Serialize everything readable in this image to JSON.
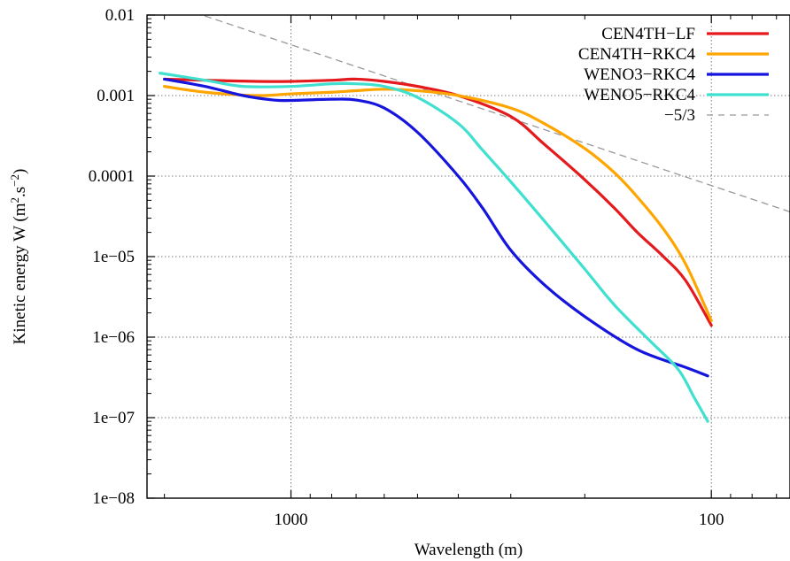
{
  "chart_data": {
    "type": "line",
    "xlabel": "Wavelength (m)",
    "ylabel": "Kinetic energy W (m",
    "ylabel_sup1": "2",
    "ylabel_mid": ".s",
    "ylabel_sup2": "−2",
    "ylabel_end": ")",
    "x_scale": "log",
    "x_reversed": true,
    "xlim": [
      2200,
      65
    ],
    "y_scale": "log",
    "ylim": [
      1e-08,
      0.01
    ],
    "grid": true,
    "legend_position": "top-right",
    "xticks": [
      {
        "value": 1000,
        "label": "1000"
      },
      {
        "value": 100,
        "label": "100"
      }
    ],
    "yticks": [
      {
        "value": 0.01,
        "label": "0.01"
      },
      {
        "value": 0.001,
        "label": "0.001"
      },
      {
        "value": 0.0001,
        "label": "0.0001"
      },
      {
        "value": 1e-05,
        "label": "1e−05"
      },
      {
        "value": 1e-06,
        "label": "1e−06"
      },
      {
        "value": 1e-07,
        "label": "1e−07"
      },
      {
        "value": 1e-08,
        "label": "1e−08"
      }
    ],
    "series": [
      {
        "name": "CEN4TH−LF",
        "color": "#e41a1c",
        "dash": "solid",
        "points": [
          [
            2000,
            0.0016
          ],
          [
            1600,
            0.00155
          ],
          [
            1200,
            0.0015
          ],
          [
            1000,
            0.0015
          ],
          [
            800,
            0.00155
          ],
          [
            700,
            0.0016
          ],
          [
            600,
            0.0015
          ],
          [
            500,
            0.0013
          ],
          [
            400,
            0.001
          ],
          [
            300,
            0.00055
          ],
          [
            250,
            0.00025
          ],
          [
            200,
            9e-05
          ],
          [
            170,
            4e-05
          ],
          [
            150,
            2e-05
          ],
          [
            130,
            1e-05
          ],
          [
            115,
            5e-06
          ],
          [
            100,
            1.4e-06
          ]
        ]
      },
      {
        "name": "CEN4TH−RKC4",
        "color": "#ffa500",
        "dash": "solid",
        "points": [
          [
            2000,
            0.0013
          ],
          [
            1600,
            0.0011
          ],
          [
            1200,
            0.001
          ],
          [
            1000,
            0.00105
          ],
          [
            800,
            0.0011
          ],
          [
            700,
            0.00115
          ],
          [
            600,
            0.0012
          ],
          [
            500,
            0.00115
          ],
          [
            400,
            0.001
          ],
          [
            300,
            0.0007
          ],
          [
            250,
            0.00045
          ],
          [
            200,
            0.00022
          ],
          [
            170,
            0.00011
          ],
          [
            150,
            5.5e-05
          ],
          [
            130,
            2.2e-05
          ],
          [
            115,
            8e-06
          ],
          [
            100,
            1.6e-06
          ]
        ]
      },
      {
        "name": "WENO3−RKC4",
        "color": "#1515dd",
        "dash": "solid",
        "points": [
          [
            2000,
            0.0016
          ],
          [
            1600,
            0.0013
          ],
          [
            1300,
            0.001
          ],
          [
            1100,
            0.00088
          ],
          [
            1000,
            0.00087
          ],
          [
            800,
            0.0009
          ],
          [
            700,
            0.00088
          ],
          [
            600,
            0.0007
          ],
          [
            500,
            0.00035
          ],
          [
            400,
            0.0001
          ],
          [
            350,
            4e-05
          ],
          [
            300,
            1.2e-05
          ],
          [
            250,
            4.5e-06
          ],
          [
            200,
            1.8e-06
          ],
          [
            150,
            7e-07
          ],
          [
            115,
            4.2e-07
          ],
          [
            102,
            3.3e-07
          ]
        ]
      },
      {
        "name": "WENO5−RKC4",
        "color": "#40e0d0",
        "dash": "solid",
        "points": [
          [
            2050,
            0.0019
          ],
          [
            1600,
            0.00155
          ],
          [
            1300,
            0.0013
          ],
          [
            1000,
            0.0013
          ],
          [
            800,
            0.0014
          ],
          [
            700,
            0.0014
          ],
          [
            600,
            0.0013
          ],
          [
            500,
            0.00095
          ],
          [
            400,
            0.00045
          ],
          [
            350,
            0.00021
          ],
          [
            300,
            8.5e-05
          ],
          [
            250,
            2.8e-05
          ],
          [
            200,
            7e-06
          ],
          [
            170,
            2.5e-06
          ],
          [
            140,
            9e-07
          ],
          [
            120,
            4e-07
          ],
          [
            110,
            1.8e-07
          ],
          [
            102,
            9e-08
          ]
        ]
      },
      {
        "name": "−5/3",
        "color": "#999999",
        "dash": "dashed",
        "points": [
          [
            1600,
            0.00973
          ],
          [
            65,
            3.6e-05
          ]
        ]
      }
    ]
  }
}
